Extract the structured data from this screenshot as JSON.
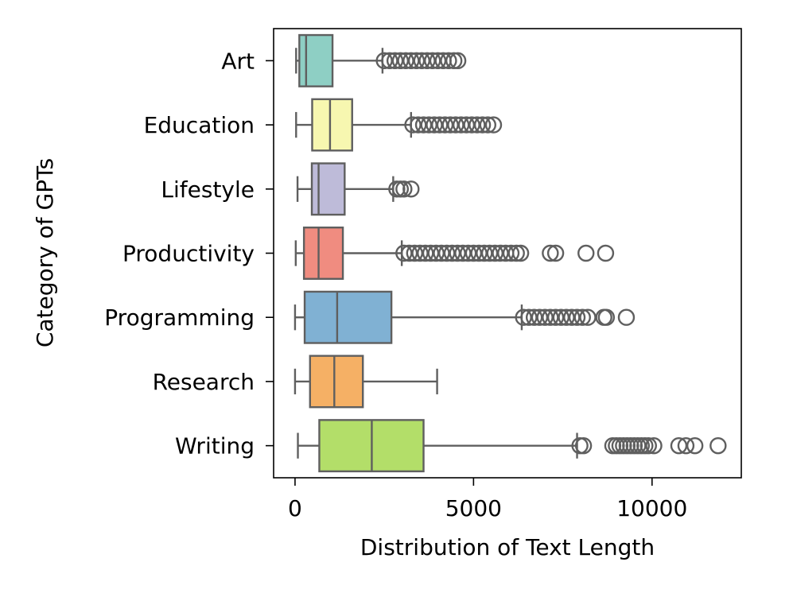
{
  "chart_data": {
    "type": "box",
    "orientation": "horizontal",
    "title": "",
    "xlabel": "Distribution of Text Length",
    "ylabel": "Category of GPTs",
    "xlim": [
      -600,
      12500
    ],
    "xticks": [
      0,
      5000,
      10000
    ],
    "xtick_labels": [
      "0",
      "5000",
      "10000"
    ],
    "grid": false,
    "legend": "none",
    "median_color": "#5f5f5f",
    "line_color": "#5f5f5f",
    "categories": [
      "Art",
      "Education",
      "Lifestyle",
      "Productivity",
      "Programming",
      "Research",
      "Writing"
    ],
    "series": [
      {
        "category": "Art",
        "color": "#8ecfc4",
        "whisker_low": 30,
        "q1": 120,
        "median": 310,
        "q3": 1050,
        "whisker_high": 2450,
        "outliers": [
          2500,
          2650,
          2800,
          2950,
          3100,
          3250,
          3400,
          3550,
          3700,
          3850,
          4000,
          4150,
          4300,
          4450,
          4560
        ]
      },
      {
        "category": "Education",
        "color": "#f7f7b0",
        "whisker_low": 30,
        "q1": 480,
        "median": 980,
        "q3": 1600,
        "whisker_high": 3250,
        "outliers": [
          3300,
          3450,
          3600,
          3750,
          3900,
          4050,
          4200,
          4350,
          4500,
          4650,
          4800,
          4950,
          5100,
          5250,
          5400,
          5560
        ]
      },
      {
        "category": "Lifestyle",
        "color": "#bebbd9",
        "whisker_low": 70,
        "q1": 470,
        "median": 660,
        "q3": 1390,
        "whisker_high": 2750,
        "outliers": [
          2850,
          2950,
          3050,
          3250
        ]
      },
      {
        "category": "Productivity",
        "color": "#f08c80",
        "whisker_low": 20,
        "q1": 250,
        "median": 660,
        "q3": 1340,
        "whisker_high": 2990,
        "outliers": [
          3050,
          3200,
          3350,
          3500,
          3650,
          3800,
          3950,
          4100,
          4250,
          4400,
          4550,
          4700,
          4850,
          5000,
          5150,
          5300,
          5450,
          5600,
          5750,
          5900,
          6050,
          6200,
          6320,
          7150,
          7300,
          8150,
          8700
        ]
      },
      {
        "category": "Programming",
        "color": "#80b1d3",
        "whisker_low": 0,
        "q1": 270,
        "median": 1180,
        "q3": 2700,
        "whisker_high": 6350,
        "outliers": [
          6400,
          6550,
          6700,
          6850,
          7000,
          7150,
          7300,
          7450,
          7600,
          7750,
          7900,
          8050,
          8200,
          8650,
          8720,
          9280
        ]
      },
      {
        "category": "Research",
        "color": "#f5b065",
        "whisker_low": 0,
        "q1": 420,
        "median": 1100,
        "q3": 1900,
        "whisker_high": 3980,
        "outliers": []
      },
      {
        "category": "Writing",
        "color": "#b3de69",
        "whisker_low": 80,
        "q1": 680,
        "median": 2150,
        "q3": 3600,
        "whisker_high": 7900,
        "outliers": [
          7980,
          8080,
          8900,
          9000,
          9100,
          9200,
          9300,
          9400,
          9500,
          9600,
          9700,
          9800,
          9900,
          10050,
          10750,
          10950,
          11200,
          11850
        ]
      }
    ]
  }
}
